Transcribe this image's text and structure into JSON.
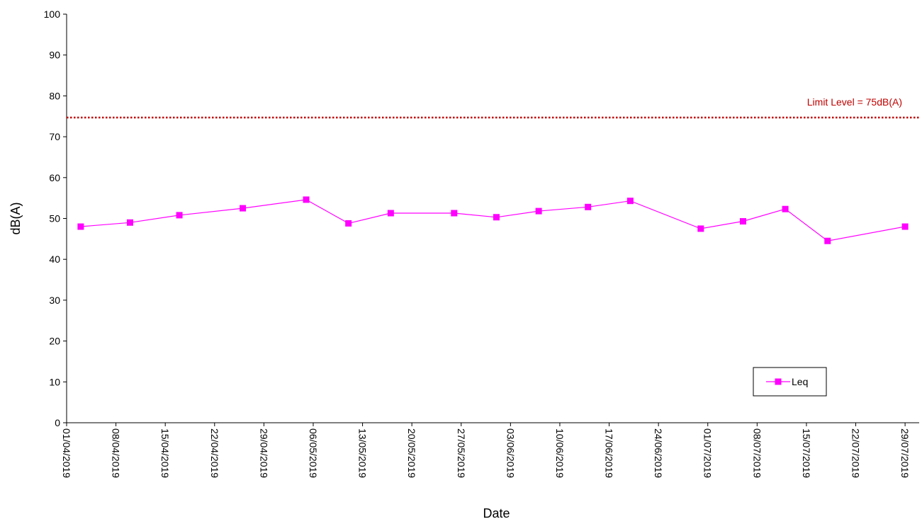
{
  "chart_data": {
    "type": "line",
    "xlabel": "Date",
    "ylabel": "dB(A)",
    "ylim": [
      0,
      100
    ],
    "yticks": [
      0,
      10,
      20,
      30,
      40,
      50,
      60,
      70,
      80,
      90,
      100
    ],
    "xlim": [
      "2019-04-01",
      "2019-07-31"
    ],
    "xticks": [
      "2019-04-01",
      "2019-04-08",
      "2019-04-15",
      "2019-04-22",
      "2019-04-29",
      "2019-05-06",
      "2019-05-13",
      "2019-05-20",
      "2019-05-27",
      "2019-06-03",
      "2019-06-10",
      "2019-06-17",
      "2019-06-24",
      "2019-07-01",
      "2019-07-08",
      "2019-07-15",
      "2019-07-22",
      "2019-07-29"
    ],
    "xtick_labels": [
      "01/04/2019",
      "08/04/2019",
      "15/04/2019",
      "22/04/2019",
      "29/04/2019",
      "06/05/2019",
      "13/05/2019",
      "20/05/2019",
      "27/05/2019",
      "03/06/2019",
      "10/06/2019",
      "17/06/2019",
      "24/06/2019",
      "01/07/2019",
      "08/07/2019",
      "15/07/2019",
      "22/07/2019",
      "29/07/2019"
    ],
    "series": [
      {
        "name": "Leq",
        "color": "#ff00ff",
        "marker": "square",
        "x": [
          "2019-04-03",
          "2019-04-10",
          "2019-04-17",
          "2019-04-26",
          "2019-05-05",
          "2019-05-11",
          "2019-05-17",
          "2019-05-26",
          "2019-06-01",
          "2019-06-07",
          "2019-06-14",
          "2019-06-20",
          "2019-06-30",
          "2019-07-06",
          "2019-07-12",
          "2019-07-18",
          "2019-07-29"
        ],
        "y": [
          48,
          49,
          50.8,
          52.5,
          54.6,
          48.8,
          51.3,
          51.3,
          50.3,
          51.8,
          52.8,
          54.3,
          47.5,
          49.3,
          52.3,
          44.5,
          48
        ]
      }
    ],
    "reference_line": {
      "label": "Limit Level = 75dB(A)",
      "value": 74.7,
      "color": "#c00000",
      "style": "dotted"
    },
    "legend_position": "bottom-right",
    "grid": false
  }
}
